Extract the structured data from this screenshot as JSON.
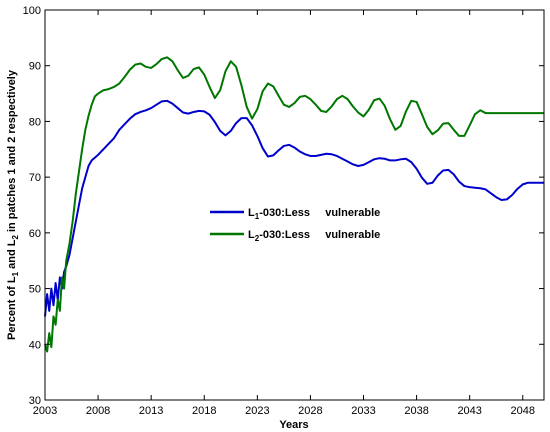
{
  "chart_data": {
    "type": "line",
    "xlabel": "Years",
    "ylabel": {
      "parts": [
        "Percent of L",
        "1",
        " and L",
        "2",
        " in patches 1 and 2 respectively"
      ]
    },
    "xlim": [
      2003,
      2050
    ],
    "ylim": [
      30,
      100
    ],
    "xticks": [
      2003,
      2008,
      2013,
      2018,
      2023,
      2028,
      2033,
      2038,
      2043,
      2048
    ],
    "yticks": [
      30,
      40,
      50,
      60,
      70,
      80,
      90,
      100
    ],
    "legend_position": "center",
    "series": [
      {
        "name": "L1-030:Less vulnerable",
        "label_parts": [
          "L",
          "1",
          "-030:Less     vulnerable"
        ],
        "color": "#0000cc",
        "x": [
          2003.0,
          2003.2,
          2003.4,
          2003.6,
          2003.8,
          2004.0,
          2004.2,
          2004.4,
          2004.6,
          2004.8,
          2005.0,
          2005.3,
          2005.6,
          2005.9,
          2006.2,
          2006.5,
          2006.8,
          2007.1,
          2007.4,
          2007.7,
          2008.0,
          2008.5,
          2009.0,
          2009.5,
          2010.0,
          2010.5,
          2011.0,
          2011.5,
          2012.0,
          2012.5,
          2013.0,
          2013.5,
          2014.0,
          2014.5,
          2015.0,
          2015.5,
          2016.0,
          2016.5,
          2017.0,
          2017.5,
          2018.0,
          2018.5,
          2019.0,
          2019.5,
          2020.0,
          2020.5,
          2021.0,
          2021.5,
          2022.0,
          2022.5,
          2023.0,
          2023.5,
          2024.0,
          2024.5,
          2025.0,
          2025.5,
          2026.0,
          2026.5,
          2027.0,
          2027.5,
          2028.0,
          2028.5,
          2029.0,
          2029.5,
          2030.0,
          2030.5,
          2031.0,
          2031.5,
          2032.0,
          2032.5,
          2033.0,
          2033.5,
          2034.0,
          2034.5,
          2035.0,
          2035.5,
          2036.0,
          2036.5,
          2037.0,
          2037.5,
          2038.0,
          2038.5,
          2039.0,
          2039.5,
          2040.0,
          2040.5,
          2041.0,
          2041.5,
          2042.0,
          2042.5,
          2043.0,
          2043.5,
          2044.0,
          2044.5,
          2045.0,
          2045.5,
          2046.0,
          2046.5,
          2047.0,
          2047.5,
          2048.0,
          2048.5,
          2049.0,
          2049.5,
          2050.0
        ],
        "y": [
          45,
          49,
          46,
          50,
          47,
          51,
          48,
          52,
          50,
          53,
          54,
          56,
          59,
          62,
          65,
          68,
          70,
          72,
          73,
          73.5,
          74,
          75,
          76,
          77,
          78.5,
          79.5,
          80.5,
          81.3,
          81.7,
          82,
          82.4,
          83,
          83.6,
          83.7,
          83.2,
          82.4,
          81.6,
          81.4,
          81.7,
          81.9,
          81.8,
          81.2,
          79.9,
          78.3,
          77.5,
          78.3,
          79.7,
          80.6,
          80.6,
          79.3,
          77.4,
          75.2,
          73.7,
          73.9,
          74.8,
          75.6,
          75.8,
          75.3,
          74.6,
          74.1,
          73.8,
          73.8,
          74,
          74.2,
          74.1,
          73.8,
          73.3,
          72.8,
          72.3,
          72,
          72.2,
          72.7,
          73.2,
          73.4,
          73.3,
          73,
          73,
          73.2,
          73.3,
          72.7,
          71.5,
          69.9,
          68.8,
          69,
          70.3,
          71.2,
          71.3,
          70.5,
          69.2,
          68.4,
          68.2,
          68.1,
          68,
          67.8,
          67.1,
          66.4,
          65.9,
          66,
          66.8,
          67.9,
          68.7,
          69,
          69,
          69,
          69
        ]
      },
      {
        "name": "L2-030:Less vulnerable",
        "label_parts": [
          "L",
          "2",
          "-030:Less     vulnerable"
        ],
        "color": "#007700",
        "x": [
          2003.0,
          2003.2,
          2003.4,
          2003.6,
          2003.8,
          2004.0,
          2004.2,
          2004.4,
          2004.6,
          2004.8,
          2005.0,
          2005.3,
          2005.6,
          2005.9,
          2006.2,
          2006.5,
          2006.8,
          2007.1,
          2007.4,
          2007.7,
          2008.0,
          2008.5,
          2009.0,
          2009.5,
          2010.0,
          2010.5,
          2011.0,
          2011.5,
          2012.0,
          2012.5,
          2013.0,
          2013.5,
          2014.0,
          2014.5,
          2015.0,
          2015.5,
          2016.0,
          2016.5,
          2017.0,
          2017.5,
          2018.0,
          2018.5,
          2019.0,
          2019.5,
          2020.0,
          2020.5,
          2021.0,
          2021.5,
          2022.0,
          2022.5,
          2023.0,
          2023.5,
          2024.0,
          2024.5,
          2025.0,
          2025.5,
          2026.0,
          2026.5,
          2027.0,
          2027.5,
          2028.0,
          2028.5,
          2029.0,
          2029.5,
          2030.0,
          2030.5,
          2031.0,
          2031.5,
          2032.0,
          2032.5,
          2033.0,
          2033.5,
          2034.0,
          2034.5,
          2035.0,
          2035.5,
          2036.0,
          2036.5,
          2037.0,
          2037.5,
          2038.0,
          2038.5,
          2039.0,
          2039.5,
          2040.0,
          2040.5,
          2041.0,
          2041.5,
          2042.0,
          2042.5,
          2043.0,
          2043.5,
          2044.0,
          2044.5,
          2045.0,
          2045.5,
          2046.0,
          2046.5,
          2047.0,
          2047.5,
          2048.0,
          2048.5,
          2049.0,
          2049.5,
          2050.0
        ],
        "y": [
          40,
          38.7,
          42,
          39.5,
          45,
          43.5,
          48,
          46,
          52,
          50,
          55,
          58,
          62,
          67,
          71,
          75,
          78.5,
          81,
          83,
          84.5,
          85,
          85.6,
          85.8,
          86.2,
          86.8,
          88,
          89.3,
          90.2,
          90.4,
          89.8,
          89.6,
          90.3,
          91.2,
          91.5,
          90.8,
          89.2,
          87.8,
          88.2,
          89.4,
          89.7,
          88.4,
          86.2,
          84.2,
          85.6,
          89,
          90.8,
          89.8,
          86.5,
          82.6,
          80.5,
          82.2,
          85.4,
          86.8,
          86.3,
          84.6,
          83,
          82.6,
          83.3,
          84.4,
          84.6,
          84,
          83,
          81.9,
          81.7,
          82.7,
          84,
          84.6,
          84,
          82.7,
          81.6,
          80.9,
          82.1,
          83.8,
          84.1,
          82.8,
          80.4,
          78.5,
          79.2,
          81.8,
          83.7,
          83.5,
          81.3,
          79,
          77.7,
          78.4,
          79.6,
          79.7,
          78.5,
          77.4,
          77.4,
          79.3,
          81.3,
          82,
          81.5,
          81.5,
          81.5,
          81.5,
          81.5,
          81.5,
          81.5,
          81.5,
          81.5,
          81.5,
          81.5,
          81.5
        ]
      }
    ]
  }
}
